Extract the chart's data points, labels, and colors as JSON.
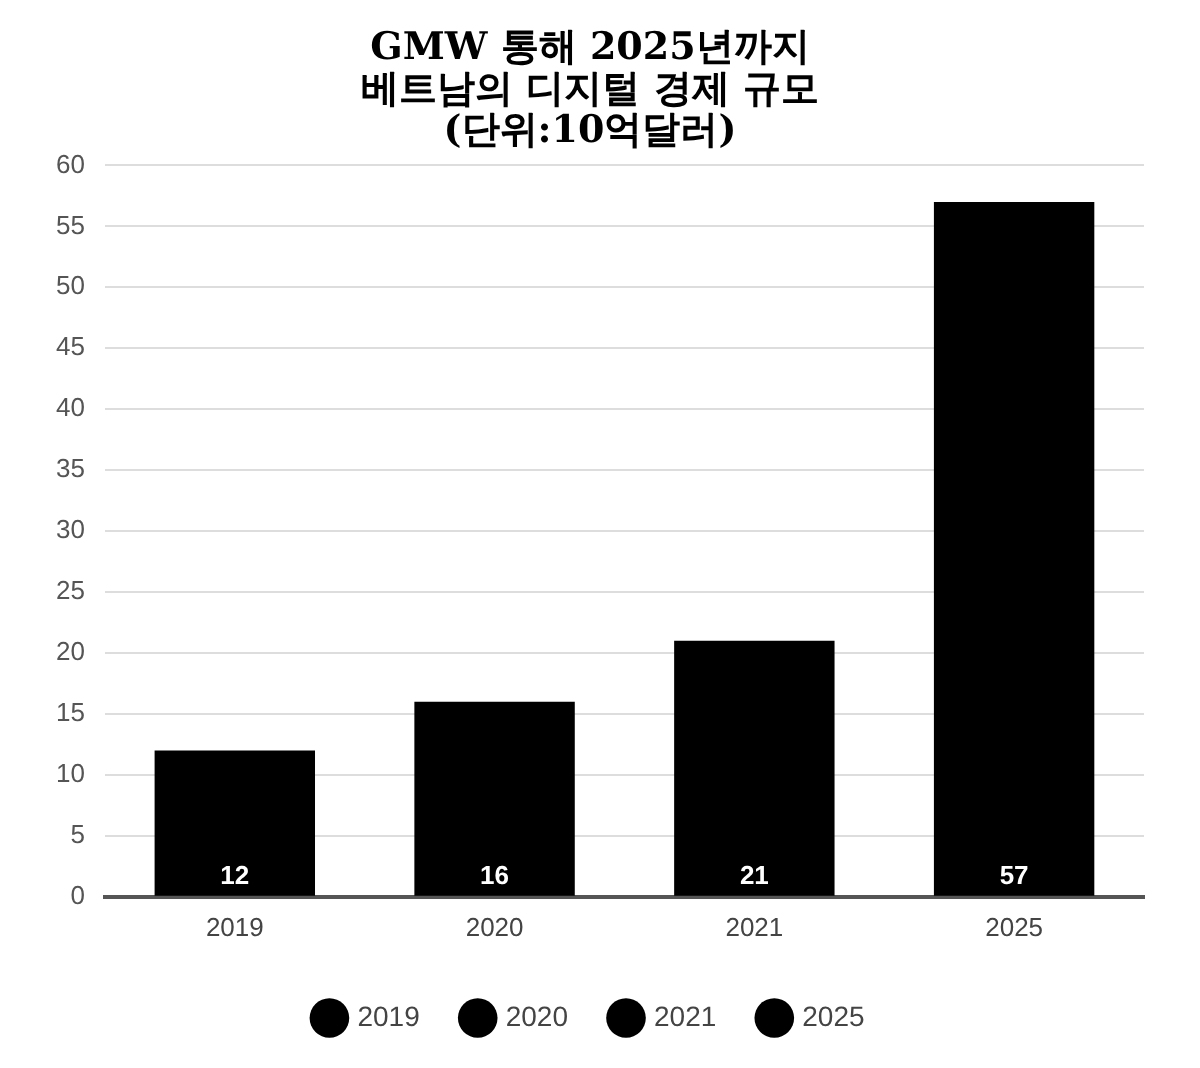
{
  "chart_data": {
    "type": "bar",
    "title": "GMW 통해 2025년까지\n베트남의 디지털 경제 규모\n(단위:10억달러)",
    "categories": [
      "2019",
      "2020",
      "2021",
      "2025"
    ],
    "series": [
      {
        "name": "2019",
        "color": "#000000",
        "values": [
          12,
          null,
          null,
          null
        ]
      },
      {
        "name": "2020",
        "color": "#000000",
        "values": [
          null,
          16,
          null,
          null
        ]
      },
      {
        "name": "2021",
        "color": "#000000",
        "values": [
          null,
          null,
          21,
          null
        ]
      },
      {
        "name": "2025",
        "color": "#000000",
        "values": [
          null,
          null,
          null,
          57
        ]
      }
    ],
    "ylim": [
      0,
      60
    ],
    "yticks": [
      0,
      5,
      10,
      15,
      20,
      25,
      30,
      35,
      40,
      45,
      50,
      55,
      60
    ],
    "grid": "y",
    "legend": "bottom",
    "data_labels": true
  }
}
